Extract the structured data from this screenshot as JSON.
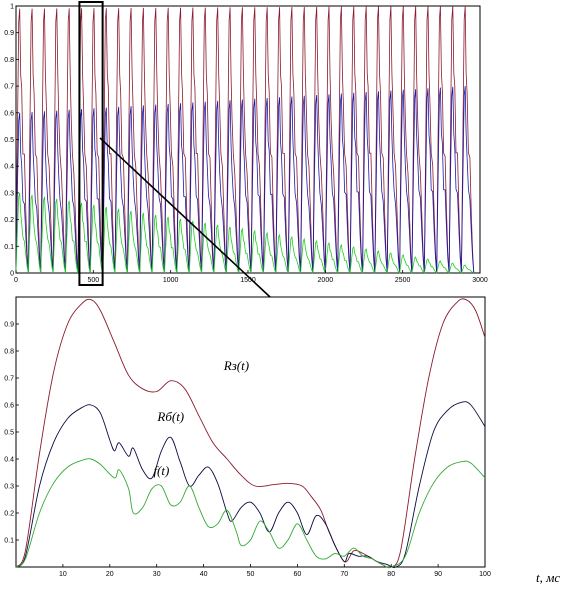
{
  "chart_data": [
    {
      "type": "line",
      "title": "",
      "xlabel": "",
      "ylabel": "",
      "xlim": [
        0,
        3000
      ],
      "ylim": [
        0,
        1
      ],
      "xticks": [
        0,
        500,
        1000,
        1500,
        2000,
        2500,
        3000
      ],
      "yticks": [
        0,
        0.1,
        0.2,
        0.3,
        0.4,
        0.5,
        0.6,
        0.7,
        0.8,
        0.9,
        1
      ],
      "xtick_labels": [
        "0",
        "500",
        "1000",
        "1500",
        "2000",
        "2500",
        "3000"
      ],
      "ytick_labels": [
        "0",
        "0.1",
        "0.2",
        "0.3",
        "0.4",
        "0.5",
        "0.6",
        "0.7",
        "0.8",
        "0.9",
        "1"
      ],
      "grid": false,
      "period": 80,
      "n_cycles": 37,
      "series": [
        {
          "color": "#8b1a2e",
          "peak": 0.99,
          "decay_to": 1.0
        },
        {
          "color": "#1a1aa8",
          "peak": 0.6,
          "decay_to": 0.7
        },
        {
          "color": "#22cc22",
          "peak": 0.3,
          "decay_to": 0.03
        }
      ],
      "highlight_range": [
        410,
        560
      ]
    },
    {
      "type": "line",
      "title": "",
      "xlabel": "t, мс",
      "ylabel": "",
      "xlim": [
        0,
        100
      ],
      "ylim": [
        0,
        1
      ],
      "xticks": [
        10,
        20,
        30,
        40,
        50,
        60,
        70,
        80,
        90,
        100
      ],
      "yticks": [
        0.1,
        0.2,
        0.3,
        0.4,
        0.5,
        0.6,
        0.7,
        0.8,
        0.9
      ],
      "xtick_labels": [
        "10",
        "20",
        "30",
        "40",
        "50",
        "60",
        "70",
        "80",
        "90",
        "100"
      ],
      "ytick_labels": [
        "0.1",
        "0.2",
        "0.3",
        "0.4",
        "0.5",
        "0.6",
        "0.7",
        "0.8",
        "0.9"
      ],
      "grid": false,
      "series": [
        {
          "name": "Rз(t)",
          "color": "#8b1a2e",
          "points": [
            [
              0,
              0
            ],
            [
              2,
              0.06
            ],
            [
              5,
              0.42
            ],
            [
              8,
              0.72
            ],
            [
              11,
              0.9
            ],
            [
              14,
              0.975
            ],
            [
              16,
              0.99
            ],
            [
              18,
              0.95
            ],
            [
              21,
              0.83
            ],
            [
              24,
              0.71
            ],
            [
              27,
              0.66
            ],
            [
              30,
              0.65
            ],
            [
              33,
              0.69
            ],
            [
              36,
              0.66
            ],
            [
              39,
              0.56
            ],
            [
              42,
              0.46
            ],
            [
              45,
              0.4
            ],
            [
              48,
              0.34
            ],
            [
              51,
              0.3
            ],
            [
              55,
              0.305
            ],
            [
              58,
              0.31
            ],
            [
              61,
              0.3
            ],
            [
              63,
              0.26
            ],
            [
              65,
              0.21
            ],
            [
              67,
              0.12
            ],
            [
              70,
              0.02
            ],
            [
              72,
              0.06
            ],
            [
              74,
              0.05
            ],
            [
              76,
              0.03
            ],
            [
              78,
              0.01
            ],
            [
              80,
              0
            ],
            [
              82,
              0.06
            ],
            [
              85,
              0.4
            ],
            [
              88,
              0.7
            ],
            [
              91,
              0.9
            ],
            [
              94,
              0.98
            ],
            [
              96,
              0.99
            ],
            [
              98,
              0.95
            ],
            [
              100,
              0.85
            ]
          ]
        },
        {
          "name": "Rб(t)",
          "color": "#0b0b40",
          "points": [
            [
              0,
              0
            ],
            [
              2,
              0.04
            ],
            [
              5,
              0.3
            ],
            [
              8,
              0.46
            ],
            [
              11,
              0.55
            ],
            [
              14,
              0.59
            ],
            [
              16,
              0.6
            ],
            [
              18,
              0.57
            ],
            [
              20,
              0.47
            ],
            [
              21,
              0.43
            ],
            [
              22,
              0.46
            ],
            [
              24,
              0.41
            ],
            [
              25,
              0.44
            ],
            [
              27,
              0.36
            ],
            [
              29,
              0.33
            ],
            [
              31,
              0.43
            ],
            [
              33,
              0.48
            ],
            [
              35,
              0.39
            ],
            [
              37,
              0.3
            ],
            [
              39,
              0.34
            ],
            [
              41,
              0.37
            ],
            [
              43,
              0.31
            ],
            [
              45,
              0.2
            ],
            [
              46,
              0.17
            ],
            [
              48,
              0.22
            ],
            [
              50,
              0.24
            ],
            [
              52,
              0.2
            ],
            [
              54,
              0.13
            ],
            [
              56,
              0.2
            ],
            [
              58,
              0.24
            ],
            [
              60,
              0.2
            ],
            [
              62,
              0.12
            ],
            [
              64,
              0.19
            ],
            [
              66,
              0.16
            ],
            [
              68,
              0.08
            ],
            [
              70,
              0.02
            ],
            [
              71,
              0.05
            ],
            [
              73,
              0.04
            ],
            [
              75,
              0.04
            ],
            [
              77,
              0.02
            ],
            [
              79,
              0.01
            ],
            [
              81,
              0
            ],
            [
              83,
              0.05
            ],
            [
              86,
              0.3
            ],
            [
              89,
              0.5
            ],
            [
              92,
              0.58
            ],
            [
              95,
              0.61
            ],
            [
              97,
              0.6
            ],
            [
              100,
              0.52
            ]
          ]
        },
        {
          "name": "f(t)",
          "color": "#33aa33",
          "points": [
            [
              0,
              0
            ],
            [
              2,
              0.03
            ],
            [
              5,
              0.2
            ],
            [
              8,
              0.31
            ],
            [
              11,
              0.37
            ],
            [
              14,
              0.395
            ],
            [
              16,
              0.4
            ],
            [
              18,
              0.38
            ],
            [
              21,
              0.33
            ],
            [
              22,
              0.36
            ],
            [
              24,
              0.29
            ],
            [
              25,
              0.2
            ],
            [
              27,
              0.22
            ],
            [
              29,
              0.29
            ],
            [
              31,
              0.3
            ],
            [
              33,
              0.23
            ],
            [
              35,
              0.24
            ],
            [
              37,
              0.3
            ],
            [
              39,
              0.22
            ],
            [
              41,
              0.15
            ],
            [
              43,
              0.16
            ],
            [
              45,
              0.21
            ],
            [
              47,
              0.13
            ],
            [
              48,
              0.08
            ],
            [
              50,
              0.1
            ],
            [
              52,
              0.17
            ],
            [
              54,
              0.13
            ],
            [
              56,
              0.07
            ],
            [
              58,
              0.1
            ],
            [
              60,
              0.16
            ],
            [
              62,
              0.1
            ],
            [
              64,
              0.04
            ],
            [
              66,
              0.03
            ],
            [
              68,
              0.05
            ],
            [
              70,
              0.04
            ],
            [
              72,
              0.07
            ],
            [
              74,
              0.04
            ],
            [
              76,
              0.03
            ],
            [
              78,
              0.01
            ],
            [
              80,
              0
            ],
            [
              83,
              0.04
            ],
            [
              86,
              0.2
            ],
            [
              89,
              0.31
            ],
            [
              92,
              0.37
            ],
            [
              95,
              0.39
            ],
            [
              97,
              0.385
            ],
            [
              100,
              0.33
            ]
          ]
        }
      ],
      "annotations": [
        {
          "text": "Rз(t)",
          "x": 47,
          "y": 0.73
        },
        {
          "text": "Rб(t)",
          "x": 33,
          "y": 0.54
        },
        {
          "text": "f(t)",
          "x": 31,
          "y": 0.34
        }
      ]
    }
  ]
}
